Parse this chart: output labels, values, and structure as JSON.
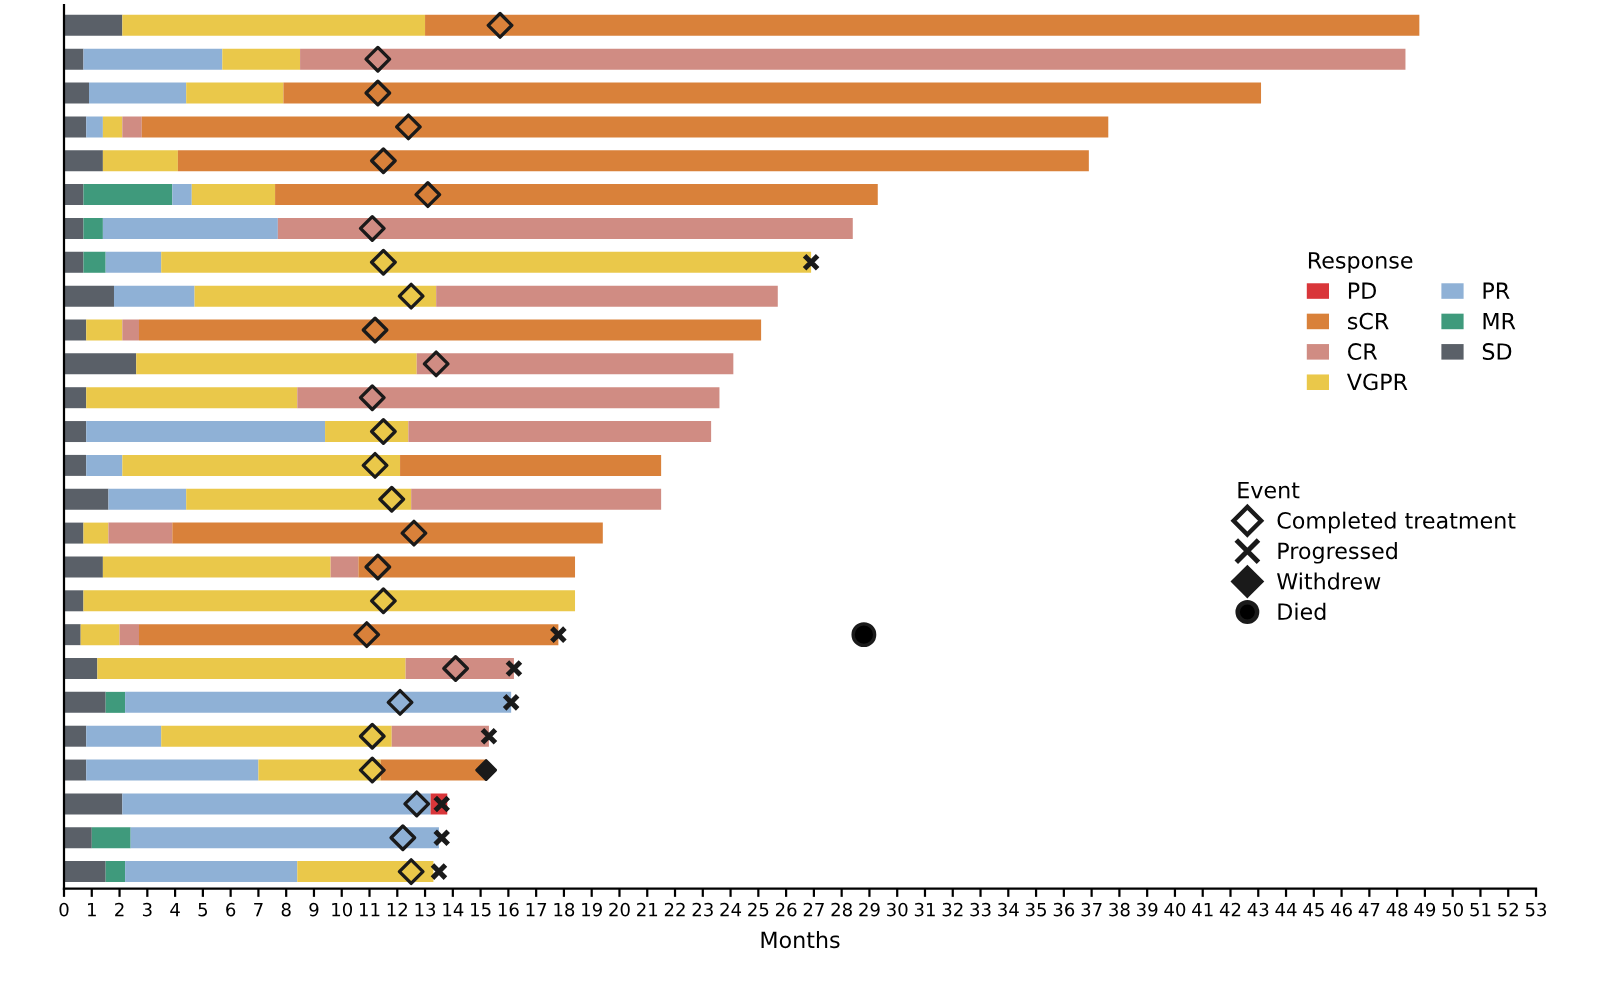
{
  "chart_data": {
    "type": "bar",
    "orientation": "horizontal",
    "stacked": true,
    "xlabel": "Months",
    "categories": [
      null,
      null,
      null,
      null,
      null,
      null,
      null,
      null,
      null,
      null,
      null,
      null,
      null,
      null,
      null,
      null,
      null,
      null,
      null,
      null,
      null,
      null,
      null,
      null,
      null,
      null
    ],
    "xlim": [
      0,
      53
    ],
    "xticks": [
      0,
      1,
      2,
      3,
      4,
      5,
      6,
      7,
      8,
      9,
      10,
      11,
      12,
      13,
      14,
      15,
      16,
      17,
      18,
      19,
      20,
      21,
      22,
      23,
      24,
      25,
      26,
      27,
      28,
      29,
      30,
      31,
      32,
      33,
      34,
      35,
      36,
      37,
      38,
      39,
      40,
      41,
      42,
      43,
      44,
      45,
      46,
      47,
      48,
      49,
      50,
      51,
      52,
      53
    ],
    "grid": false,
    "legend": "right",
    "legend_title": [
      "Response",
      "Event"
    ],
    "series": [
      {
        "name": "SD",
        "color": "#5a6068",
        "values": [
          2.1,
          0.7,
          0.9,
          0.8,
          1.4,
          0.7,
          0.7,
          0.7,
          1.8,
          0.8,
          2.6,
          0.8,
          0.8,
          0.8,
          1.6,
          0.7,
          1.4,
          0.7,
          0.6,
          1.2,
          1.5,
          0.8,
          0.8,
          2.1,
          1.0,
          1.5
        ]
      },
      {
        "name": "MR",
        "color": "#3f9a7c",
        "values": [
          null,
          null,
          null,
          null,
          null,
          3.2,
          0.7,
          0.8,
          null,
          null,
          null,
          null,
          null,
          null,
          null,
          null,
          null,
          null,
          null,
          null,
          0.7,
          null,
          null,
          null,
          1.4,
          0.7
        ]
      },
      {
        "name": "PR",
        "color": "#8fb1d6",
        "values": [
          null,
          5.0,
          3.5,
          0.6,
          null,
          0.7,
          6.3,
          2.0,
          2.9,
          null,
          null,
          null,
          8.6,
          1.3,
          2.8,
          null,
          null,
          null,
          null,
          null,
          13.9,
          2.7,
          6.2,
          11.1,
          11.1,
          6.2
        ]
      },
      {
        "name": "VGPR",
        "color": "#eac84a",
        "values": [
          10.9,
          2.8,
          3.5,
          0.7,
          2.7,
          3.0,
          null,
          23.4,
          8.7,
          1.3,
          10.1,
          7.6,
          3.0,
          10.0,
          8.1,
          0.9,
          8.2,
          17.7,
          1.4,
          11.1,
          null,
          8.3,
          4.4,
          null,
          null,
          4.9
        ]
      },
      {
        "name": "CR",
        "color": "#d08c83",
        "values": [
          null,
          39.8,
          null,
          0.7,
          null,
          null,
          20.7,
          null,
          12.3,
          0.6,
          11.4,
          15.2,
          10.9,
          null,
          9.0,
          2.3,
          1.0,
          null,
          0.7,
          3.9,
          null,
          3.5,
          null,
          null,
          null,
          null
        ]
      },
      {
        "name": "sCR",
        "color": "#d9813a",
        "values": [
          35.8,
          null,
          35.2,
          34.8,
          32.8,
          21.7,
          null,
          null,
          null,
          22.4,
          null,
          null,
          null,
          9.4,
          null,
          15.5,
          7.8,
          null,
          15.1,
          null,
          null,
          null,
          3.8,
          null,
          null,
          null
        ]
      },
      {
        "name": "PD",
        "color": "#d9363a",
        "values": [
          null,
          null,
          null,
          null,
          null,
          null,
          null,
          null,
          null,
          null,
          null,
          null,
          null,
          null,
          null,
          null,
          null,
          null,
          null,
          null,
          null,
          null,
          null,
          0.6,
          null,
          null
        ]
      },
      {
        "name": "Completed treatment",
        "type": "scatter",
        "marker": "diamond",
        "values": [
          15.7,
          11.3,
          11.3,
          12.4,
          11.5,
          13.1,
          11.1,
          11.5,
          12.5,
          11.2,
          13.4,
          11.1,
          11.5,
          11.2,
          11.8,
          12.6,
          11.3,
          11.5,
          10.9,
          14.1,
          12.1,
          11.1,
          11.1,
          12.7,
          12.2,
          12.5
        ]
      },
      {
        "name": "Progressed",
        "type": "scatter",
        "marker": "cross",
        "color": "#1a1a1a",
        "values": [
          null,
          null,
          null,
          null,
          null,
          null,
          null,
          26.9,
          null,
          null,
          null,
          null,
          null,
          null,
          null,
          null,
          null,
          null,
          17.8,
          16.2,
          16.1,
          15.3,
          null,
          13.6,
          13.6,
          13.5
        ]
      },
      {
        "name": "Withdrew",
        "type": "scatter",
        "marker": "diamond",
        "color": "#1a1a1a",
        "values": [
          null,
          null,
          null,
          null,
          null,
          null,
          null,
          null,
          null,
          null,
          null,
          null,
          null,
          null,
          null,
          null,
          null,
          null,
          null,
          null,
          null,
          null,
          15.2,
          null,
          null,
          null
        ]
      },
      {
        "name": "Died",
        "type": "scatter",
        "marker": "circle",
        "color": "#000000",
        "values": [
          null,
          null,
          null,
          null,
          null,
          null,
          null,
          null,
          null,
          null,
          null,
          null,
          null,
          null,
          null,
          null,
          null,
          null,
          28.8,
          null,
          null,
          null,
          null,
          null,
          null,
          null
        ]
      }
    ]
  }
}
